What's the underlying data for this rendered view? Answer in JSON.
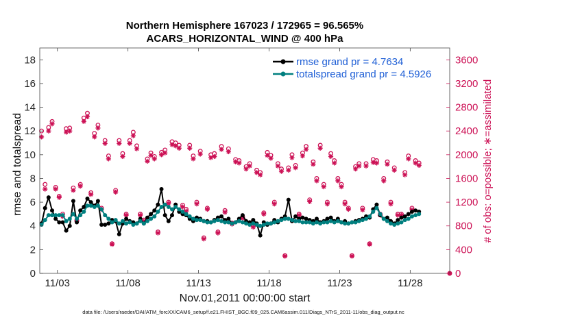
{
  "chart_data": {
    "type": "line",
    "title_line1": "Northern Hemisphere 167023 / 172965 = 96.565%",
    "title_line2": "ACARS_HORIZONTAL_WIND @ 400 hPa",
    "ylabel_left": "rmse and totalspread",
    "ylabel_right": "# of obs: o=possible; ∗=assimilated",
    "xlabel": "Nov.01,2011 00:00:00 start",
    "footnote": "data file: /Users/raeder/DAI/ATM_forcXX/CAM6_setup/f.e21.FHIST_BGC.f09_025.CAM6assim.011/Diags_NTrS_2011-11/obs_diag_output.nc",
    "x_tick_labels": [
      "11/03",
      "11/08",
      "11/13",
      "11/18",
      "11/23",
      "11/28"
    ],
    "x_tick_days": [
      3,
      8,
      13,
      18,
      23,
      28
    ],
    "x_range_days": [
      1.75,
      30.8
    ],
    "y_left_ticks": [
      0,
      2,
      4,
      6,
      8,
      10,
      12,
      14,
      16,
      18
    ],
    "y_left_range": [
      0,
      19
    ],
    "y_right_ticks": [
      0,
      400,
      800,
      1200,
      1600,
      2000,
      2400,
      2800,
      3200,
      3600
    ],
    "y_right_range": [
      0,
      3800
    ],
    "colors": {
      "rmse": "#000000",
      "spread": "#007f7f",
      "obs": "#cc1155",
      "legend_text": "#1f5fd6"
    },
    "legend": [
      {
        "label": "rmse     grand pr = 4.7634",
        "series": "rmse"
      },
      {
        "label": "totalspread grand pr = 4.5926",
        "series": "totalspread"
      }
    ],
    "series": [
      {
        "name": "rmse",
        "axis": "left",
        "values": [
          4.2,
          5.5,
          6.4,
          5.3,
          4.6,
          4.3,
          4.3,
          3.6,
          4.0,
          6.1,
          4.3,
          5.3,
          5.6,
          6.3,
          6.0,
          5.7,
          6.1,
          4.1,
          4.1,
          4.2,
          4.5,
          4.4,
          3.3,
          4.2,
          4.6,
          4.4,
          4.3,
          4.2,
          4.6,
          4.2,
          4.7,
          5.0,
          5.3,
          5.8,
          7.1,
          4.9,
          4.4,
          4.9,
          5.8,
          5.2,
          5.0,
          4.9,
          4.6,
          4.4,
          4.7,
          4.6,
          4.4,
          4.4,
          4.3,
          4.5,
          4.7,
          4.8,
          4.5,
          4.6,
          4.2,
          4.3,
          4.6,
          4.9,
          4.4,
          4.3,
          4.5,
          4.2,
          3.2,
          4.3,
          4.1,
          4.2,
          4.5,
          4.3,
          4.6,
          4.8,
          6.2,
          4.4,
          4.8,
          4.6,
          4.7,
          4.6,
          4.5,
          4.4,
          4.6,
          4.3,
          4.4,
          4.6,
          4.7,
          4.4,
          4.6,
          4.3,
          4.4,
          4.2,
          4.3,
          4.4,
          4.5,
          4.6,
          4.8,
          4.7,
          5.4,
          5.8,
          4.9,
          4.6,
          4.7,
          4.4,
          4.2,
          4.5,
          4.7,
          4.8,
          5.0,
          5.2,
          5.3,
          5.2
        ]
      },
      {
        "name": "totalspread",
        "axis": "left",
        "values": [
          4.1,
          4.5,
          4.9,
          4.9,
          4.9,
          4.9,
          4.9,
          4.4,
          4.6,
          5.0,
          4.6,
          4.9,
          5.2,
          5.7,
          5.7,
          5.6,
          5.7,
          5.4,
          4.9,
          4.6,
          4.3,
          4.5,
          4.2,
          4.4,
          4.2,
          4.3,
          4.1,
          4.2,
          4.4,
          4.2,
          4.4,
          4.6,
          4.8,
          5.2,
          5.6,
          5.8,
          5.6,
          5.4,
          5.6,
          5.4,
          5.2,
          5.0,
          4.8,
          4.6,
          4.5,
          4.5,
          4.4,
          4.3,
          4.3,
          4.4,
          4.5,
          4.4,
          4.3,
          4.3,
          4.2,
          4.3,
          4.4,
          4.3,
          4.2,
          4.1,
          4.2,
          4.1,
          4.0,
          4.1,
          4.2,
          4.2,
          4.3,
          4.4,
          4.5,
          4.6,
          4.6,
          4.5,
          4.4,
          4.4,
          4.3,
          4.3,
          4.3,
          4.2,
          4.3,
          4.2,
          4.3,
          4.3,
          4.4,
          4.3,
          4.4,
          4.3,
          4.2,
          4.2,
          4.3,
          4.3,
          4.4,
          4.5,
          4.6,
          4.8,
          5.2,
          5.5,
          5.0,
          4.6,
          4.4,
          4.2,
          4.1,
          4.2,
          4.3,
          4.5,
          4.6,
          4.8,
          4.9,
          5.0
        ]
      },
      {
        "name": "obs_possible",
        "axis": "right",
        "values": [
          2400,
          1500,
          2460,
          2560,
          1450,
          1300,
          1000,
          2440,
          2450,
          1440,
          900,
          1500,
          2620,
          2700,
          1360,
          2360,
          2500,
          1100,
          2240,
          1980,
          500,
          1400,
          2240,
          2020,
          1000,
          2240,
          2380,
          2150,
          1000,
          900,
          1930,
          2030,
          1970,
          700,
          2040,
          2080,
          1200,
          2220,
          2200,
          2160,
          1150,
          1080,
          2160,
          1980,
          1200,
          2060,
          600,
          1100,
          2000,
          2020,
          700,
          2140,
          1060,
          2100,
          850,
          1920,
          1900,
          950,
          1800,
          1850,
          800,
          1740,
          1700,
          1020,
          2040,
          1990,
          1200,
          1850,
          1760,
          300,
          1780,
          2000,
          1820,
          1000,
          2030,
          2140,
          1240,
          1880,
          1600,
          2160,
          1500,
          1200,
          2020,
          1900,
          1600,
          1500,
          1200,
          1100,
          300,
          1800,
          1850,
          1100,
          1850,
          500,
          1920,
          1900,
          1000,
          1600,
          1880,
          1200,
          1780,
          1000,
          1000,
          1700,
          1980,
          1100,
          1900,
          1860
        ]
      },
      {
        "name": "obs_assimilated",
        "axis": "right",
        "values": [
          2300,
          1420,
          2400,
          2520,
          1420,
          1280,
          960,
          2380,
          2400,
          1400,
          880,
          1470,
          2560,
          2640,
          1330,
          2300,
          2450,
          1080,
          2190,
          1930,
          490,
          1370,
          2190,
          1970,
          980,
          2190,
          2320,
          2100,
          980,
          880,
          1890,
          1990,
          1930,
          680,
          2000,
          2030,
          1180,
          2170,
          2150,
          2110,
          1120,
          1050,
          2110,
          1930,
          1170,
          2010,
          580,
          1080,
          1950,
          1970,
          680,
          2090,
          1030,
          2050,
          830,
          1880,
          1860,
          930,
          1760,
          1810,
          780,
          1700,
          1660,
          1000,
          1990,
          1940,
          1170,
          1810,
          1720,
          290,
          1740,
          1950,
          1780,
          980,
          1980,
          2090,
          1210,
          1840,
          1560,
          2110,
          1460,
          1170,
          1970,
          1860,
          1560,
          1460,
          1170,
          1080,
          290,
          1760,
          1810,
          1070,
          1810,
          490,
          1870,
          1860,
          980,
          1560,
          1840,
          1170,
          1740,
          980,
          980,
          1660,
          1930,
          1070,
          1860,
          1820
        ]
      }
    ],
    "trailing_points": [
      {
        "name": "obs_possible",
        "day": 30.8,
        "value": 0
      },
      {
        "name": "obs_assimilated",
        "day": 30.8,
        "value": 0
      }
    ]
  }
}
